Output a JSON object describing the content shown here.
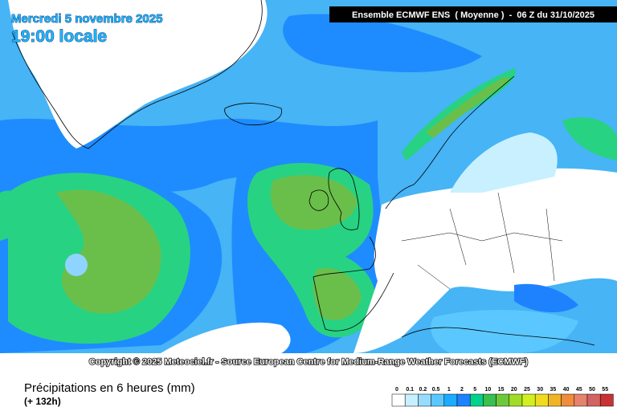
{
  "header": {
    "date": "Mercredi 5 novembre 2025",
    "time": "19:00 locale",
    "model": "Ensemble ECMWF ENS  ( Moyenne )  -  06 Z du 31/10/2025"
  },
  "copyright": "Copyright © 2025 Meteociel.fr - Source European Centre for Medium-Range Weather Forecasts (ECMWF)",
  "footer": {
    "title": "Précipitations en 6 heures (mm)",
    "lead": "(+ 132h)"
  },
  "legend": {
    "values": [
      0,
      0.1,
      0.2,
      0.5,
      1,
      2,
      5,
      10,
      15,
      20,
      25,
      30,
      35,
      40,
      45,
      50,
      55
    ],
    "colors": [
      "#ffffff",
      "#c8f0ff",
      "#96dcff",
      "#5ac8ff",
      "#1eaaff",
      "#1e82ff",
      "#00d28c",
      "#3cbe50",
      "#6ec83c",
      "#a0dc28",
      "#d2f01e",
      "#f0dc1e",
      "#f0b428",
      "#f08c3c",
      "#e6826e",
      "#d26464",
      "#c83232"
    ]
  }
}
